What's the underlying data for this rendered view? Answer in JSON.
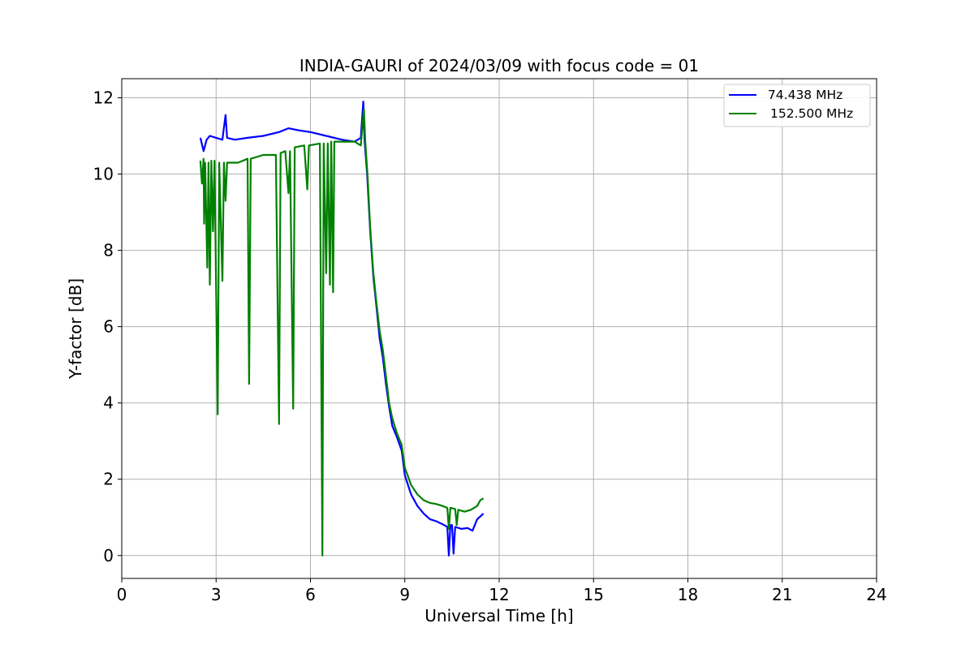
{
  "chart_data": {
    "type": "line",
    "title": "INDIA-GAURI of 2024/03/09 with focus code = 01",
    "xlabel": "Universal Time [h]",
    "ylabel": "Y-factor [dB]",
    "xlim": [
      0,
      24
    ],
    "ylim": [
      -0.6,
      12.5
    ],
    "xticks": [
      0,
      3,
      6,
      9,
      12,
      15,
      18,
      21,
      24
    ],
    "yticks": [
      0,
      2,
      4,
      6,
      8,
      10,
      12
    ],
    "grid": true,
    "legend_position": "top-right",
    "series": [
      {
        "name": " 74.438 MHz",
        "color": "#0000ff",
        "points": [
          [
            2.5,
            10.95
          ],
          [
            2.6,
            10.6
          ],
          [
            2.7,
            10.9
          ],
          [
            2.8,
            11.0
          ],
          [
            3.0,
            10.95
          ],
          [
            3.2,
            10.9
          ],
          [
            3.3,
            11.55
          ],
          [
            3.35,
            10.95
          ],
          [
            3.6,
            10.9
          ],
          [
            4.0,
            10.95
          ],
          [
            4.5,
            11.0
          ],
          [
            5.0,
            11.1
          ],
          [
            5.3,
            11.2
          ],
          [
            5.6,
            11.15
          ],
          [
            6.0,
            11.1
          ],
          [
            6.5,
            11.0
          ],
          [
            7.0,
            10.9
          ],
          [
            7.4,
            10.85
          ],
          [
            7.6,
            10.95
          ],
          [
            7.68,
            11.9
          ],
          [
            7.72,
            10.9
          ],
          [
            7.8,
            10.0
          ],
          [
            7.9,
            8.5
          ],
          [
            8.0,
            7.3
          ],
          [
            8.1,
            6.5
          ],
          [
            8.2,
            5.7
          ],
          [
            8.3,
            5.2
          ],
          [
            8.4,
            4.5
          ],
          [
            8.5,
            3.9
          ],
          [
            8.6,
            3.4
          ],
          [
            8.75,
            3.1
          ],
          [
            8.9,
            2.75
          ],
          [
            9.0,
            2.1
          ],
          [
            9.2,
            1.6
          ],
          [
            9.4,
            1.3
          ],
          [
            9.6,
            1.1
          ],
          [
            9.8,
            0.95
          ],
          [
            10.0,
            0.9
          ],
          [
            10.2,
            0.82
          ],
          [
            10.35,
            0.75
          ],
          [
            10.4,
            0.0
          ],
          [
            10.45,
            0.8
          ],
          [
            10.5,
            0.8
          ],
          [
            10.55,
            0.05
          ],
          [
            10.6,
            0.75
          ],
          [
            10.8,
            0.7
          ],
          [
            11.0,
            0.72
          ],
          [
            11.15,
            0.65
          ],
          [
            11.3,
            0.95
          ],
          [
            11.5,
            1.1
          ]
        ]
      },
      {
        "name": "152.500 MHz",
        "color": "#008000",
        "points": [
          [
            2.5,
            10.35
          ],
          [
            2.55,
            9.75
          ],
          [
            2.6,
            10.4
          ],
          [
            2.62,
            8.7
          ],
          [
            2.65,
            10.3
          ],
          [
            2.72,
            7.55
          ],
          [
            2.76,
            10.3
          ],
          [
            2.8,
            7.1
          ],
          [
            2.85,
            10.35
          ],
          [
            2.9,
            8.5
          ],
          [
            2.95,
            10.35
          ],
          [
            3.05,
            3.7
          ],
          [
            3.1,
            10.3
          ],
          [
            3.2,
            7.2
          ],
          [
            3.25,
            10.3
          ],
          [
            3.3,
            9.3
          ],
          [
            3.35,
            10.3
          ],
          [
            3.7,
            10.3
          ],
          [
            4.0,
            10.4
          ],
          [
            4.05,
            4.5
          ],
          [
            4.1,
            10.4
          ],
          [
            4.5,
            10.5
          ],
          [
            4.9,
            10.5
          ],
          [
            5.0,
            3.45
          ],
          [
            5.05,
            10.55
          ],
          [
            5.2,
            10.6
          ],
          [
            5.3,
            9.5
          ],
          [
            5.35,
            10.6
          ],
          [
            5.45,
            3.85
          ],
          [
            5.5,
            10.7
          ],
          [
            5.8,
            10.75
          ],
          [
            5.9,
            9.6
          ],
          [
            5.95,
            10.75
          ],
          [
            6.3,
            10.8
          ],
          [
            6.38,
            0.0
          ],
          [
            6.42,
            10.8
          ],
          [
            6.5,
            7.4
          ],
          [
            6.55,
            10.8
          ],
          [
            6.62,
            7.1
          ],
          [
            6.66,
            10.85
          ],
          [
            6.72,
            6.9
          ],
          [
            6.76,
            10.85
          ],
          [
            7.0,
            10.85
          ],
          [
            7.4,
            10.85
          ],
          [
            7.6,
            10.75
          ],
          [
            7.7,
            11.7
          ],
          [
            7.74,
            10.9
          ],
          [
            7.82,
            9.9
          ],
          [
            7.9,
            8.6
          ],
          [
            8.0,
            7.4
          ],
          [
            8.1,
            6.6
          ],
          [
            8.2,
            5.9
          ],
          [
            8.3,
            5.4
          ],
          [
            8.4,
            4.7
          ],
          [
            8.5,
            4.0
          ],
          [
            8.6,
            3.6
          ],
          [
            8.75,
            3.2
          ],
          [
            8.9,
            2.9
          ],
          [
            9.0,
            2.3
          ],
          [
            9.2,
            1.85
          ],
          [
            9.4,
            1.6
          ],
          [
            9.6,
            1.45
          ],
          [
            9.8,
            1.38
          ],
          [
            10.0,
            1.35
          ],
          [
            10.2,
            1.3
          ],
          [
            10.35,
            1.25
          ],
          [
            10.4,
            0.7
          ],
          [
            10.45,
            1.25
          ],
          [
            10.6,
            1.22
          ],
          [
            10.65,
            0.8
          ],
          [
            10.7,
            1.2
          ],
          [
            10.9,
            1.15
          ],
          [
            11.1,
            1.2
          ],
          [
            11.3,
            1.3
          ],
          [
            11.4,
            1.45
          ],
          [
            11.5,
            1.5
          ]
        ]
      }
    ]
  }
}
